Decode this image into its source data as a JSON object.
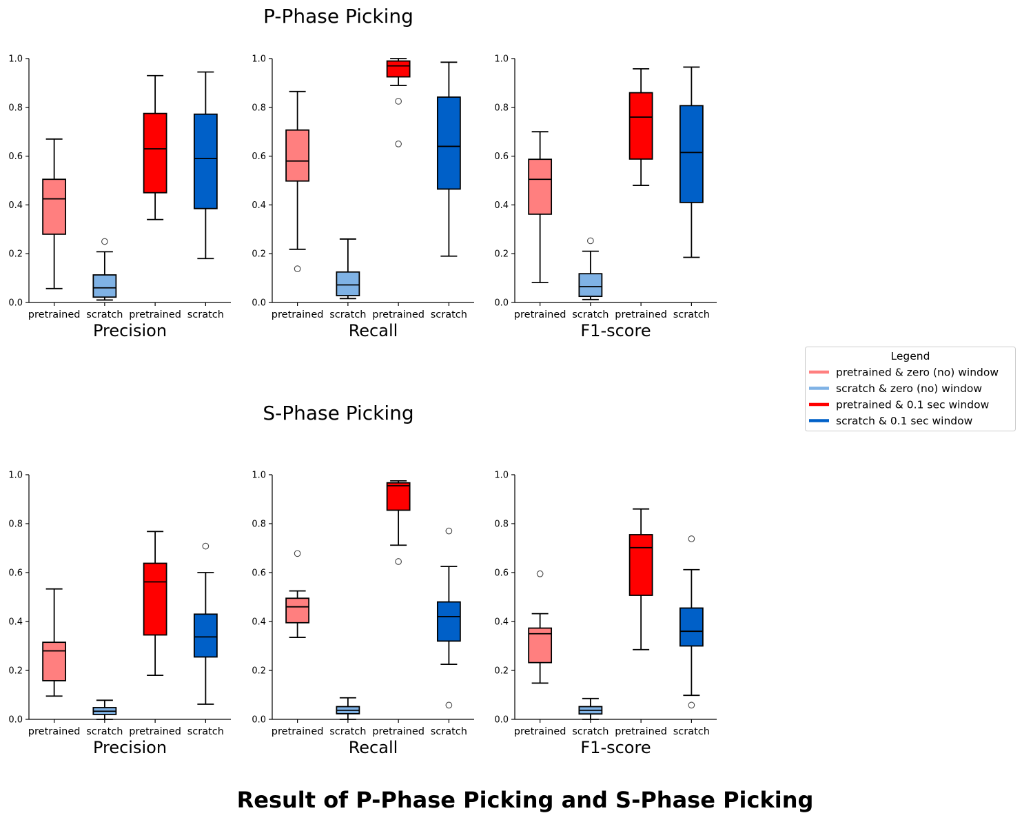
{
  "main_title": "Result of P-Phase Picking and S-Phase Picking",
  "legend": {
    "title": "Legend",
    "items": [
      {
        "label": "pretrained & zero (no) window",
        "color": "#FF7F7F"
      },
      {
        "label": "scratch & zero (no) window",
        "color": "#7FB2E5"
      },
      {
        "label": "pretrained & 0.1 sec window",
        "color": "#FF0000"
      },
      {
        "label": "scratch & 0.1 sec window",
        "color": "#0060C8"
      }
    ]
  },
  "chart_data": [
    {
      "type": "box",
      "group": "P-Phase Picking",
      "title": "P-Phase Picking",
      "xlabel": "Precision",
      "ylim": [
        0,
        1
      ],
      "yticks": [
        "0.0",
        "0.2",
        "0.4",
        "0.6",
        "0.8",
        "1.0"
      ],
      "categories": [
        "pretrained",
        "scratch",
        "pretrained",
        "scratch"
      ],
      "boxes": [
        {
          "whislo": 0.057,
          "q1": 0.28,
          "med": 0.425,
          "q3": 0.505,
          "whishi": 0.67,
          "fliers": [],
          "color": "#FF7F7F"
        },
        {
          "whislo": 0.01,
          "q1": 0.022,
          "med": 0.06,
          "q3": 0.113,
          "whishi": 0.208,
          "fliers": [
            0.25
          ],
          "color": "#7FB2E5"
        },
        {
          "whislo": 0.34,
          "q1": 0.45,
          "med": 0.63,
          "q3": 0.775,
          "whishi": 0.93,
          "fliers": [],
          "color": "#FF0000"
        },
        {
          "whislo": 0.18,
          "q1": 0.385,
          "med": 0.59,
          "q3": 0.772,
          "whishi": 0.945,
          "fliers": [],
          "color": "#0060C8"
        }
      ]
    },
    {
      "type": "box",
      "group": "P-Phase Picking",
      "xlabel": "Recall",
      "ylim": [
        0,
        1
      ],
      "yticks": [
        "0.0",
        "0.2",
        "0.4",
        "0.6",
        "0.8",
        "1.0"
      ],
      "categories": [
        "pretrained",
        "scratch",
        "pretrained",
        "scratch"
      ],
      "boxes": [
        {
          "whislo": 0.218,
          "q1": 0.498,
          "med": 0.58,
          "q3": 0.707,
          "whishi": 0.865,
          "fliers": [
            0.138
          ],
          "color": "#FF7F7F"
        },
        {
          "whislo": 0.016,
          "q1": 0.028,
          "med": 0.072,
          "q3": 0.125,
          "whishi": 0.26,
          "fliers": [],
          "color": "#7FB2E5"
        },
        {
          "whislo": 0.89,
          "q1": 0.925,
          "med": 0.97,
          "q3": 0.99,
          "whishi": 1.0,
          "fliers": [
            0.825,
            0.65
          ],
          "color": "#FF0000"
        },
        {
          "whislo": 0.19,
          "q1": 0.465,
          "med": 0.64,
          "q3": 0.842,
          "whishi": 0.985,
          "fliers": [],
          "color": "#0060C8"
        }
      ]
    },
    {
      "type": "box",
      "group": "P-Phase Picking",
      "xlabel": "F1-score",
      "ylim": [
        0,
        1
      ],
      "yticks": [
        "0.0",
        "0.2",
        "0.4",
        "0.6",
        "0.8",
        "1.0"
      ],
      "categories": [
        "pretrained",
        "scratch",
        "pretrained",
        "scratch"
      ],
      "boxes": [
        {
          "whislo": 0.082,
          "q1": 0.362,
          "med": 0.505,
          "q3": 0.587,
          "whishi": 0.7,
          "fliers": [],
          "color": "#FF7F7F"
        },
        {
          "whislo": 0.012,
          "q1": 0.025,
          "med": 0.065,
          "q3": 0.118,
          "whishi": 0.21,
          "fliers": [
            0.253
          ],
          "color": "#7FB2E5"
        },
        {
          "whislo": 0.48,
          "q1": 0.588,
          "med": 0.76,
          "q3": 0.86,
          "whishi": 0.958,
          "fliers": [],
          "color": "#FF0000"
        },
        {
          "whislo": 0.185,
          "q1": 0.41,
          "med": 0.615,
          "q3": 0.807,
          "whishi": 0.965,
          "fliers": [],
          "color": "#0060C8"
        }
      ]
    },
    {
      "type": "box",
      "group": "S-Phase Picking",
      "title": "S-Phase Picking",
      "xlabel": "Precision",
      "ylim": [
        0,
        1
      ],
      "yticks": [
        "0.0",
        "0.2",
        "0.4",
        "0.6",
        "0.8",
        "1.0"
      ],
      "categories": [
        "pretrained",
        "scratch",
        "pretrained",
        "scratch"
      ],
      "boxes": [
        {
          "whislo": 0.095,
          "q1": 0.158,
          "med": 0.28,
          "q3": 0.315,
          "whishi": 0.533,
          "fliers": [],
          "color": "#FF7F7F"
        },
        {
          "whislo": 0.0,
          "q1": 0.02,
          "med": 0.033,
          "q3": 0.048,
          "whishi": 0.078,
          "fliers": [],
          "color": "#7FB2E5"
        },
        {
          "whislo": 0.18,
          "q1": 0.345,
          "med": 0.562,
          "q3": 0.638,
          "whishi": 0.768,
          "fliers": [],
          "color": "#FF0000"
        },
        {
          "whislo": 0.062,
          "q1": 0.255,
          "med": 0.337,
          "q3": 0.43,
          "whishi": 0.6,
          "fliers": [
            0.708
          ],
          "color": "#0060C8"
        }
      ]
    },
    {
      "type": "box",
      "group": "S-Phase Picking",
      "xlabel": "Recall",
      "ylim": [
        0,
        1
      ],
      "yticks": [
        "0.0",
        "0.2",
        "0.4",
        "0.6",
        "0.8",
        "1.0"
      ],
      "categories": [
        "pretrained",
        "scratch",
        "pretrained",
        "scratch"
      ],
      "boxes": [
        {
          "whislo": 0.335,
          "q1": 0.395,
          "med": 0.46,
          "q3": 0.495,
          "whishi": 0.525,
          "fliers": [
            0.678
          ],
          "color": "#FF7F7F"
        },
        {
          "whislo": 0.0,
          "q1": 0.023,
          "med": 0.037,
          "q3": 0.052,
          "whishi": 0.088,
          "fliers": [],
          "color": "#7FB2E5"
        },
        {
          "whislo": 0.712,
          "q1": 0.855,
          "med": 0.955,
          "q3": 0.967,
          "whishi": 0.975,
          "fliers": [
            0.645
          ],
          "color": "#FF0000"
        },
        {
          "whislo": 0.225,
          "q1": 0.32,
          "med": 0.42,
          "q3": 0.48,
          "whishi": 0.625,
          "fliers": [
            0.77,
            0.058
          ],
          "color": "#0060C8"
        }
      ]
    },
    {
      "type": "box",
      "group": "S-Phase Picking",
      "xlabel": "F1-score",
      "ylim": [
        0,
        1
      ],
      "yticks": [
        "0.0",
        "0.2",
        "0.4",
        "0.6",
        "0.8",
        "1.0"
      ],
      "categories": [
        "pretrained",
        "scratch",
        "pretrained",
        "scratch"
      ],
      "boxes": [
        {
          "whislo": 0.148,
          "q1": 0.232,
          "med": 0.35,
          "q3": 0.373,
          "whishi": 0.432,
          "fliers": [
            0.595
          ],
          "color": "#FF7F7F"
        },
        {
          "whislo": 0.0,
          "q1": 0.022,
          "med": 0.037,
          "q3": 0.052,
          "whishi": 0.085,
          "fliers": [],
          "color": "#7FB2E5"
        },
        {
          "whislo": 0.285,
          "q1": 0.507,
          "med": 0.702,
          "q3": 0.755,
          "whishi": 0.86,
          "fliers": [],
          "color": "#FF0000"
        },
        {
          "whislo": 0.098,
          "q1": 0.3,
          "med": 0.36,
          "q3": 0.455,
          "whishi": 0.612,
          "fliers": [
            0.738,
            0.058
          ],
          "color": "#0060C8"
        }
      ]
    }
  ]
}
